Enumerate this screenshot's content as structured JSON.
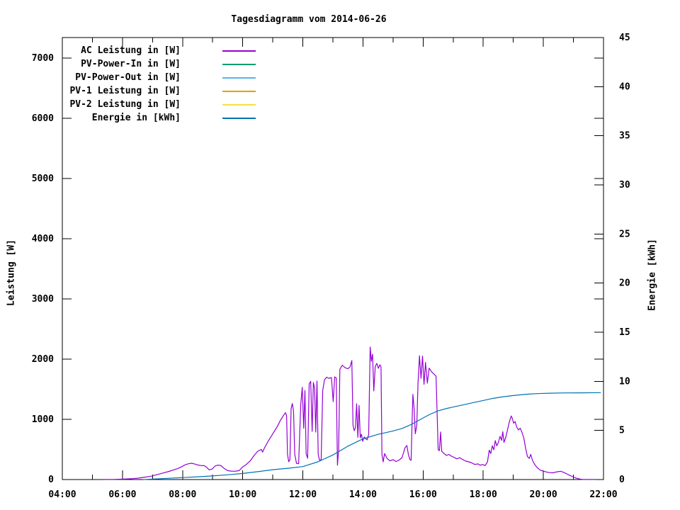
{
  "chart_data": {
    "type": "line",
    "title": "Tagesdiagramm vom 2014-06-26",
    "xlabel": "",
    "ylabel": "Leistung [W]",
    "y2label": "Energie [kWh]",
    "grid": false,
    "legend_position": "top-left-inside",
    "x_range_hours": [
      4,
      22
    ],
    "x_ticks_major": [
      "04:00",
      "06:00",
      "08:00",
      "10:00",
      "12:00",
      "14:00",
      "16:00",
      "18:00",
      "20:00",
      "22:00"
    ],
    "x_minor_hours": [
      5,
      7,
      9,
      11,
      13,
      15,
      17,
      19,
      21
    ],
    "y_range": [
      0,
      7341
    ],
    "y_ticks": [
      0,
      1000,
      2000,
      3000,
      4000,
      5000,
      6000,
      7000
    ],
    "y2_range": [
      0,
      45
    ],
    "y2_ticks": [
      0,
      5,
      10,
      15,
      20,
      25,
      30,
      35,
      40,
      45
    ],
    "series": [
      {
        "name": "AC Leistung in [W]",
        "axis": "y1",
        "color": "#9400d3",
        "points": [
          [
            5.35,
            2
          ],
          [
            5.7,
            2
          ],
          [
            5.95,
            6
          ],
          [
            6.15,
            10
          ],
          [
            6.35,
            15
          ],
          [
            6.55,
            25
          ],
          [
            6.75,
            40
          ],
          [
            6.95,
            55
          ],
          [
            7.1,
            75
          ],
          [
            7.25,
            95
          ],
          [
            7.4,
            115
          ],
          [
            7.55,
            135
          ],
          [
            7.7,
            160
          ],
          [
            7.85,
            185
          ],
          [
            7.98,
            215
          ],
          [
            8.1,
            248
          ],
          [
            8.2,
            262
          ],
          [
            8.3,
            270
          ],
          [
            8.4,
            258
          ],
          [
            8.5,
            242
          ],
          [
            8.62,
            232
          ],
          [
            8.72,
            230
          ],
          [
            8.8,
            205
          ],
          [
            8.88,
            162
          ],
          [
            8.98,
            172
          ],
          [
            9.08,
            225
          ],
          [
            9.18,
            240
          ],
          [
            9.28,
            230
          ],
          [
            9.38,
            185
          ],
          [
            9.5,
            148
          ],
          [
            9.62,
            140
          ],
          [
            9.75,
            138
          ],
          [
            9.88,
            148
          ],
          [
            10.0,
            210
          ],
          [
            10.12,
            250
          ],
          [
            10.25,
            310
          ],
          [
            10.38,
            400
          ],
          [
            10.5,
            470
          ],
          [
            10.62,
            500
          ],
          [
            10.66,
            455
          ],
          [
            10.72,
            520
          ],
          [
            10.85,
            640
          ],
          [
            10.95,
            720
          ],
          [
            11.05,
            800
          ],
          [
            11.15,
            880
          ],
          [
            11.25,
            980
          ],
          [
            11.35,
            1060
          ],
          [
            11.42,
            1110
          ],
          [
            11.46,
            1060
          ],
          [
            11.49,
            420
          ],
          [
            11.53,
            295
          ],
          [
            11.57,
            330
          ],
          [
            11.61,
            1180
          ],
          [
            11.65,
            1262
          ],
          [
            11.69,
            1140
          ],
          [
            11.73,
            420
          ],
          [
            11.79,
            268
          ],
          [
            11.86,
            262
          ],
          [
            11.93,
            1250
          ],
          [
            11.98,
            1532
          ],
          [
            12.03,
            850
          ],
          [
            12.07,
            1480
          ],
          [
            12.11,
            430
          ],
          [
            12.16,
            353
          ],
          [
            12.21,
            1590
          ],
          [
            12.26,
            1630
          ],
          [
            12.31,
            800
          ],
          [
            12.35,
            1612
          ],
          [
            12.39,
            1520
          ],
          [
            12.43,
            788
          ],
          [
            12.47,
            1635
          ],
          [
            12.51,
            420
          ],
          [
            12.56,
            312
          ],
          [
            12.61,
            330
          ],
          [
            12.66,
            1480
          ],
          [
            12.72,
            1655
          ],
          [
            12.79,
            1700
          ],
          [
            12.87,
            1680
          ],
          [
            12.95,
            1694
          ],
          [
            13.01,
            1294
          ],
          [
            13.06,
            1705
          ],
          [
            13.11,
            1688
          ],
          [
            13.15,
            238
          ],
          [
            13.19,
            500
          ],
          [
            13.23,
            1830
          ],
          [
            13.31,
            1900
          ],
          [
            13.4,
            1858
          ],
          [
            13.5,
            1840
          ],
          [
            13.57,
            1872
          ],
          [
            13.63,
            1976
          ],
          [
            13.67,
            900
          ],
          [
            13.71,
            812
          ],
          [
            13.75,
            860
          ],
          [
            13.79,
            1259
          ],
          [
            13.83,
            700
          ],
          [
            13.87,
            1230
          ],
          [
            13.91,
            694
          ],
          [
            13.95,
            753
          ],
          [
            13.99,
            635
          ],
          [
            14.04,
            706
          ],
          [
            14.09,
            676
          ],
          [
            14.14,
            660
          ],
          [
            14.19,
            750
          ],
          [
            14.24,
            2200
          ],
          [
            14.28,
            1965
          ],
          [
            14.32,
            2082
          ],
          [
            14.36,
            1470
          ],
          [
            14.41,
            1880
          ],
          [
            14.46,
            1929
          ],
          [
            14.51,
            1847
          ],
          [
            14.56,
            1906
          ],
          [
            14.6,
            1870
          ],
          [
            14.63,
            420
          ],
          [
            14.67,
            294
          ],
          [
            14.72,
            430
          ],
          [
            14.8,
            350
          ],
          [
            14.9,
            310
          ],
          [
            15.0,
            330
          ],
          [
            15.1,
            300
          ],
          [
            15.2,
            322
          ],
          [
            15.3,
            365
          ],
          [
            15.4,
            530
          ],
          [
            15.46,
            565
          ],
          [
            15.51,
            420
          ],
          [
            15.56,
            330
          ],
          [
            15.6,
            320
          ],
          [
            15.63,
            870
          ],
          [
            15.66,
            1415
          ],
          [
            15.7,
            1180
          ],
          [
            15.74,
            760
          ],
          [
            15.79,
            900
          ],
          [
            15.83,
            1590
          ],
          [
            15.88,
            2055
          ],
          [
            15.93,
            1680
          ],
          [
            15.98,
            2050
          ],
          [
            16.03,
            1580
          ],
          [
            16.08,
            1945
          ],
          [
            16.14,
            1600
          ],
          [
            16.2,
            1850
          ],
          [
            16.28,
            1790
          ],
          [
            16.36,
            1752
          ],
          [
            16.43,
            1718
          ],
          [
            16.47,
            1024
          ],
          [
            16.5,
            494
          ],
          [
            16.54,
            480
          ],
          [
            16.58,
            790
          ],
          [
            16.62,
            470
          ],
          [
            16.7,
            430
          ],
          [
            16.78,
            400
          ],
          [
            16.86,
            418
          ],
          [
            16.94,
            388
          ],
          [
            17.02,
            372
          ],
          [
            17.12,
            344
          ],
          [
            17.22,
            362
          ],
          [
            17.32,
            330
          ],
          [
            17.42,
            306
          ],
          [
            17.52,
            294
          ],
          [
            17.62,
            276
          ],
          [
            17.72,
            250
          ],
          [
            17.82,
            260
          ],
          [
            17.9,
            238
          ],
          [
            17.98,
            250
          ],
          [
            18.06,
            230
          ],
          [
            18.14,
            294
          ],
          [
            18.2,
            488
          ],
          [
            18.25,
            430
          ],
          [
            18.3,
            560
          ],
          [
            18.35,
            494
          ],
          [
            18.4,
            647
          ],
          [
            18.45,
            560
          ],
          [
            18.5,
            612
          ],
          [
            18.56,
            718
          ],
          [
            18.61,
            650
          ],
          [
            18.65,
            794
          ],
          [
            18.69,
            618
          ],
          [
            18.75,
            706
          ],
          [
            18.81,
            830
          ],
          [
            18.87,
            960
          ],
          [
            18.93,
            1055
          ],
          [
            18.97,
            1012
          ],
          [
            19.01,
            935
          ],
          [
            19.06,
            965
          ],
          [
            19.11,
            876
          ],
          [
            19.17,
            824
          ],
          [
            19.23,
            853
          ],
          [
            19.29,
            780
          ],
          [
            19.35,
            688
          ],
          [
            19.41,
            518
          ],
          [
            19.47,
            382
          ],
          [
            19.53,
            350
          ],
          [
            19.58,
            418
          ],
          [
            19.64,
            318
          ],
          [
            19.72,
            244
          ],
          [
            19.81,
            190
          ],
          [
            19.9,
            155
          ],
          [
            20.0,
            140
          ],
          [
            20.1,
            126
          ],
          [
            20.2,
            115
          ],
          [
            20.32,
            112
          ],
          [
            20.45,
            128
          ],
          [
            20.58,
            138
          ],
          [
            20.7,
            114
          ],
          [
            20.82,
            84
          ],
          [
            20.95,
            53
          ],
          [
            21.08,
            26
          ],
          [
            21.2,
            9
          ],
          [
            21.3,
            2
          ],
          [
            21.72,
            1
          ]
        ]
      },
      {
        "name": "PV-Power-In in [W]",
        "axis": "y1",
        "color": "#009e73",
        "points": []
      },
      {
        "name": "PV-Power-Out in [W]",
        "axis": "y1",
        "color": "#56b4e9",
        "points": []
      },
      {
        "name": "PV-1 Leistung in [W]",
        "axis": "y1",
        "color": "#e69f00",
        "points": []
      },
      {
        "name": "PV-2 Leistung in [W]",
        "axis": "y1",
        "color": "#f0e442",
        "points": []
      },
      {
        "name": "Energie in [kWh]",
        "axis": "y2",
        "color": "#0072b2",
        "points": [
          [
            6.7,
            0
          ],
          [
            7.0,
            0.05
          ],
          [
            7.5,
            0.12
          ],
          [
            8.0,
            0.2
          ],
          [
            8.5,
            0.28
          ],
          [
            9.0,
            0.37
          ],
          [
            9.5,
            0.48
          ],
          [
            10.0,
            0.62
          ],
          [
            10.5,
            0.8
          ],
          [
            11.0,
            1.0
          ],
          [
            11.5,
            1.15
          ],
          [
            12.0,
            1.32
          ],
          [
            12.5,
            1.8
          ],
          [
            13.0,
            2.5
          ],
          [
            13.5,
            3.4
          ],
          [
            14.0,
            4.15
          ],
          [
            14.5,
            4.6
          ],
          [
            15.0,
            4.95
          ],
          [
            15.3,
            5.2
          ],
          [
            15.6,
            5.6
          ],
          [
            15.9,
            6.1
          ],
          [
            16.2,
            6.6
          ],
          [
            16.5,
            7.0
          ],
          [
            16.8,
            7.25
          ],
          [
            17.1,
            7.45
          ],
          [
            17.4,
            7.65
          ],
          [
            17.7,
            7.85
          ],
          [
            18.0,
            8.05
          ],
          [
            18.3,
            8.25
          ],
          [
            18.6,
            8.4
          ],
          [
            18.9,
            8.52
          ],
          [
            19.2,
            8.62
          ],
          [
            19.5,
            8.7
          ],
          [
            19.8,
            8.75
          ],
          [
            20.2,
            8.79
          ],
          [
            20.7,
            8.82
          ],
          [
            21.2,
            8.83
          ],
          [
            21.9,
            8.85
          ]
        ]
      }
    ]
  }
}
